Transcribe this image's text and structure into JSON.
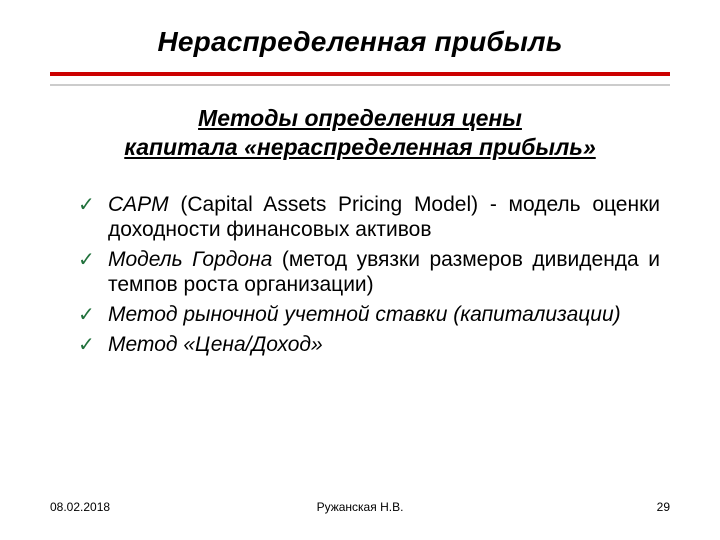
{
  "colors": {
    "rule": "#cc0000",
    "rule_shadow": "#cccccc",
    "check": "#20713b",
    "text": "#000000",
    "background": "#ffffff"
  },
  "title": "Нераспределенная прибыль",
  "subtitle_line1": "Методы определения цены",
  "subtitle_line2": "капитала «нераспределенная прибыль»",
  "items": [
    {
      "em": "CAPM",
      "rest": " (Capital Assets Pricing Model) - модель оценки доходности финансовых активов"
    },
    {
      "em": "Модель Гордона",
      "rest": " (метод увязки размеров дивиденда и темпов роста организации)"
    },
    {
      "em": "Метод рыночной учетной ставки (капитализации)",
      "rest": ""
    },
    {
      "em": "Метод «Цена/Доход»",
      "rest": ""
    }
  ],
  "footer": {
    "date": "08.02.2018",
    "author": "Ружанская Н.В.",
    "page": "29"
  },
  "checkmark": "✓"
}
